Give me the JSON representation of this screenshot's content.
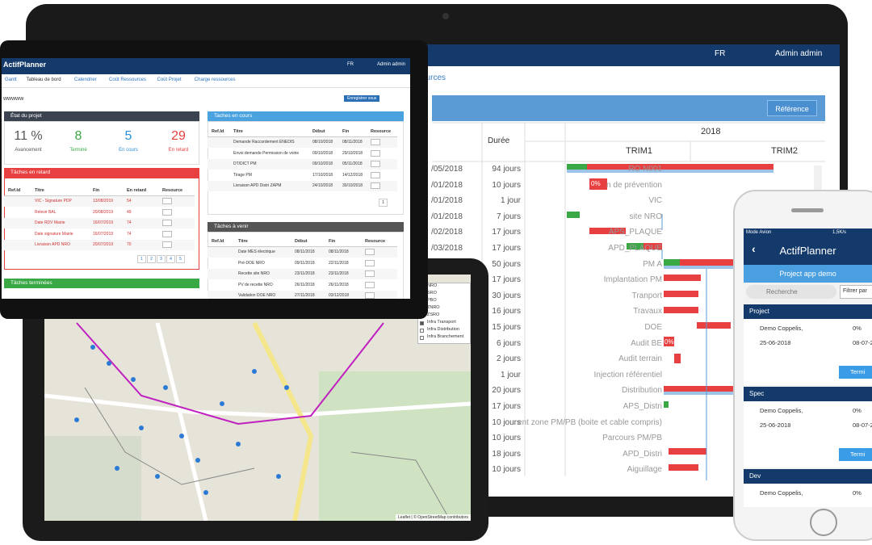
{
  "laptop": {
    "lang": "FR",
    "user": "Admin admin",
    "breadcrumb": "ources",
    "toolbar_button": "Référence",
    "gantt": {
      "duration_header": "Durée",
      "year": "2018",
      "quarters": [
        "TRIM1",
        "TRIM2"
      ],
      "rows": [
        {
          "start": "/05/2018",
          "duration": "94 jours",
          "name": "RO N001"
        },
        {
          "start": "/01/2018",
          "duration": "10 jours",
          "name": "n de prévention"
        },
        {
          "start": "/01/2018",
          "duration": "1 jour",
          "name": "VIC"
        },
        {
          "start": "/01/2018",
          "duration": "7 jours",
          "name": "site NRO"
        },
        {
          "start": "/02/2018",
          "duration": "17 jours",
          "name": "APS_PLAQUE"
        },
        {
          "start": "/03/2018",
          "duration": "17 jours",
          "name": "APD_PLAQUE"
        },
        {
          "duration": "50 jours",
          "name": "PM A"
        },
        {
          "duration": "17 jours",
          "name": "Implantation PM"
        },
        {
          "duration": "30 jours",
          "name": "Tranport"
        },
        {
          "duration": "16 jours",
          "name": "Travaux"
        },
        {
          "duration": "15 jours",
          "name": "DOE"
        },
        {
          "duration": "6 jours",
          "name": "Audit BE"
        },
        {
          "duration": "2 jours",
          "name": "Audit terrain"
        },
        {
          "duration": "1 jour",
          "name": "Injection référentiel"
        },
        {
          "duration": "20 jours",
          "name": "Distribution"
        },
        {
          "duration": "17 jours",
          "name": "APS_Distri"
        },
        {
          "duration": "10 jours",
          "name": "ent zone PM/PB (boite et cable compris)"
        },
        {
          "duration": "10 jours",
          "name": "Parcours PM/PB"
        },
        {
          "duration": "18 jours",
          "name": "APD_Distri"
        },
        {
          "duration": "10 jours",
          "name": "Aiguillage"
        }
      ],
      "bar_labels": [
        "0%",
        "0%"
      ]
    }
  },
  "dashboard": {
    "brand": "ActifPlanner",
    "lang": "FR",
    "user": "Admin admin",
    "tabs": [
      "Gantt",
      "Tableau de bord",
      "Calendrier",
      "Coût Ressources",
      "Coût Projet",
      "Charge ressources"
    ],
    "project": "wwwww",
    "save_button": "Enregistrer sous",
    "status": {
      "title": "État du projet",
      "stats": [
        {
          "value": "11 %",
          "label": "Avancement"
        },
        {
          "value": "8",
          "label": "Terminé"
        },
        {
          "value": "5",
          "label": "En cours"
        },
        {
          "value": "29",
          "label": "En retard"
        }
      ]
    },
    "late": {
      "title": "Tâches en retard",
      "headers": [
        "Ref.Id",
        "Titre",
        "Fin",
        "En retard",
        "Resource"
      ],
      "rows": [
        [
          "VIC - Signature PDP",
          "13/08/2019",
          "54"
        ],
        [
          "Relevé BAL",
          "20/08/2019",
          "49"
        ],
        [
          "Date RDV Mairie",
          "16/07/2019",
          "74"
        ],
        [
          "Date signature Mairie",
          "16/07/2019",
          "74"
        ],
        [
          "Livraison APD NRO",
          "20/07/2019",
          "70"
        ]
      ],
      "pages": [
        "1",
        "2",
        "3",
        "4",
        "5"
      ]
    },
    "done": {
      "title": "Tâches terminées"
    },
    "current": {
      "title": "Taches en cours",
      "headers": [
        "Ref.Id",
        "Titre",
        "Début",
        "Fin",
        "Resource"
      ],
      "rows": [
        [
          "Demande Raccordement ENEDIS",
          "08/10/2018",
          "08/11/2018"
        ],
        [
          "Envoi demande Permission de voirie",
          "09/10/2018",
          "29/10/2018"
        ],
        [
          "DT/DICT PM",
          "09/10/2018",
          "05/11/2018"
        ],
        [
          "Tirage PM",
          "17/10/2018",
          "14/12/2018"
        ],
        [
          "Livraison APD Distri ZAPM",
          "24/10/2018",
          "30/10/2018"
        ]
      ],
      "pages": [
        "1"
      ]
    },
    "upcoming": {
      "title": "Tâches à venir",
      "headers": [
        "Ref.Id",
        "Titre",
        "Début",
        "Fin",
        "Resource"
      ],
      "rows": [
        [
          "Date MES électrique",
          "08/11/2018",
          "08/11/2018"
        ],
        [
          "Pré-DOE NRO",
          "09/11/2018",
          "22/11/2018"
        ],
        [
          "Recette site NRO",
          "23/11/2018",
          "23/11/2018"
        ],
        [
          "PV de recette NRO",
          "26/11/2018",
          "26/11/2018"
        ],
        [
          "Validation DOE NRO",
          "27/11/2018",
          "03/12/2018"
        ]
      ]
    }
  },
  "map": {
    "layers": [
      "NRO",
      "SRO",
      "PBO",
      "ZNRO",
      "ZSRO",
      "Infra Transport",
      "Infra Distribution",
      "Infra Branchement"
    ],
    "attribution": "Leaflet | © OpenStreetMap contributors"
  },
  "phone": {
    "status_left": "Mode Avion",
    "status_right": "1,5K/s",
    "title": "ActifPlanner",
    "project": "Project app demo",
    "search": "Recherche",
    "filter": "Filtrer par",
    "cards": [
      {
        "name": "Project",
        "owner": "Demo Coppelis,",
        "progress": "0%",
        "start": "25-06-2018",
        "end": "08-07-2",
        "button": "Termi"
      },
      {
        "name": "Spec",
        "owner": "Demo Coppelis,",
        "progress": "0%",
        "start": "25-06-2018",
        "end": "08-07-2",
        "button": "Termi"
      },
      {
        "name": "Dev",
        "owner": "Demo Coppelis,",
        "progress": "0%"
      }
    ]
  }
}
